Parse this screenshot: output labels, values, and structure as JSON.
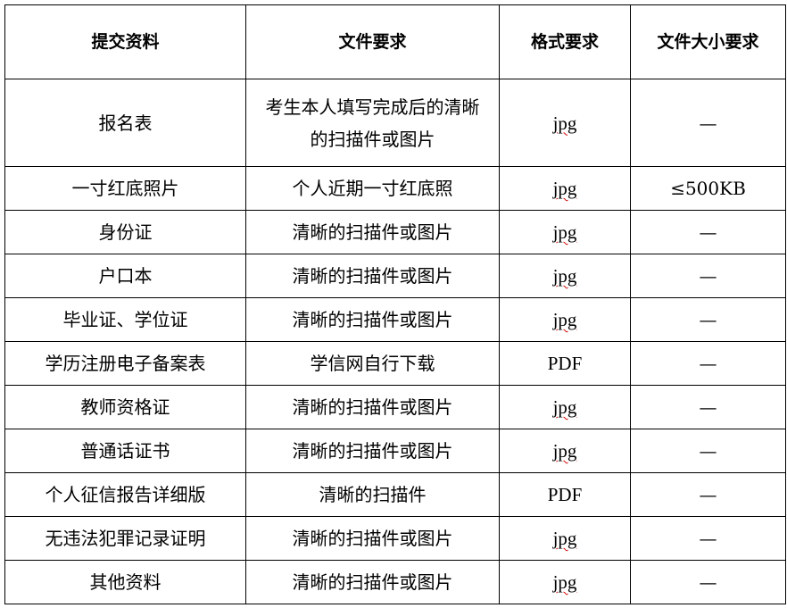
{
  "headers": [
    "提交资料",
    "文件要求",
    "格式要求",
    "文件大小要求"
  ],
  "rows": [
    {
      "material": "报名表",
      "requirement": "考生本人填写完成后的清晰的扫描件或图片",
      "format": "jpg",
      "size": "—",
      "spellcheck": true
    },
    {
      "material": "一寸红底照片",
      "requirement": "个人近期一寸红底照",
      "format": "jpg",
      "size": "≤500KB",
      "spellcheck": true
    },
    {
      "material": "身份证",
      "requirement": "清晰的扫描件或图片",
      "format": "jpg",
      "size": "—",
      "spellcheck": true
    },
    {
      "material": "户口本",
      "requirement": "清晰的扫描件或图片",
      "format": "jpg",
      "size": "—",
      "spellcheck": true
    },
    {
      "material": "毕业证、学位证",
      "requirement": "清晰的扫描件或图片",
      "format": "jpg",
      "size": "—",
      "spellcheck": true
    },
    {
      "material": "学历注册电子备案表",
      "requirement": "学信网自行下载",
      "format": "PDF",
      "size": "—",
      "spellcheck": false
    },
    {
      "material": "教师资格证",
      "requirement": "清晰的扫描件或图片",
      "format": "jpg",
      "size": "—",
      "spellcheck": true
    },
    {
      "material": "普通话证书",
      "requirement": "清晰的扫描件或图片",
      "format": "jpg",
      "size": "—",
      "spellcheck": true
    },
    {
      "material": "个人征信报告详细版",
      "requirement": "清晰的扫描件",
      "format": "PDF",
      "size": "—",
      "spellcheck": false
    },
    {
      "material": "无违法犯罪记录证明",
      "requirement": "清晰的扫描件或图片",
      "format": "jpg",
      "size": "—",
      "spellcheck": true
    },
    {
      "material": "其他资料",
      "requirement": "清晰的扫描件或图片",
      "format": "jpg",
      "size": "—",
      "spellcheck": true
    }
  ],
  "colors": {
    "spellcheck_underline": "#d00000",
    "border": "#000000"
  }
}
